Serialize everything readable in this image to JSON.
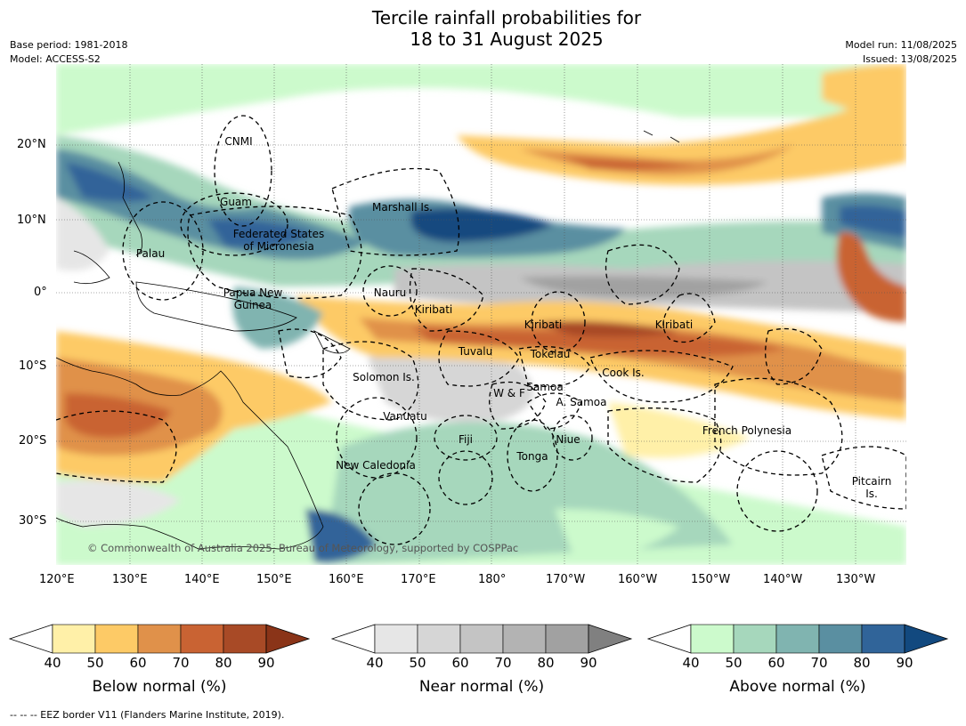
{
  "title_line1": "Tercile rainfall probabilities for",
  "title_line2": "18 to 31 August 2025",
  "base_period": "Base period: 1981-2018",
  "model": "Model: ACCESS-S2",
  "model_run": "Model run: 11/08/2025",
  "issued": "Issued: 13/08/2025",
  "lat_labels": [
    "20°N",
    "10°N",
    "0°",
    "10°S",
    "20°S",
    "30°S"
  ],
  "lon_labels": [
    "120°E",
    "130°E",
    "140°E",
    "150°E",
    "160°E",
    "170°E",
    "180°",
    "170°W",
    "160°W",
    "150°W",
    "140°W",
    "130°W"
  ],
  "regions": [
    "CNMI",
    "Guam",
    "Marshall Is.",
    "Federated States\nof Micronesia",
    "Palau",
    "Nauru",
    "Papua New\nGuinea",
    "Kiribati",
    "Kiribati",
    "Kiribati",
    "Tuvalu",
    "Tokelau",
    "Solomon Is.",
    "Cook Is.",
    "W & F",
    "Samoa",
    "A. Samoa",
    "Vanuatu",
    "Fiji",
    "Niue",
    "French Polynesia",
    "Tonga",
    "New Caledonia",
    "Pitcairn\nIs."
  ],
  "copyright": "© Commonwealth of Australia 2025, Bureau of Meteorology, supported by COSPPac",
  "colorbars": [
    {
      "title": "Below normal (%)",
      "ticks": [
        "40",
        "50",
        "60",
        "70",
        "80",
        "90"
      ],
      "colors": [
        "#fff0a8",
        "#fdca66",
        "#e0914a",
        "#c96333",
        "#a84a26",
        "#8a3418"
      ]
    },
    {
      "title": "Near normal (%)",
      "ticks": [
        "40",
        "50",
        "60",
        "70",
        "80",
        "90"
      ],
      "colors": [
        "#e6e6e6",
        "#d6d6d6",
        "#c4c4c4",
        "#b3b3b3",
        "#a1a1a1",
        "#808080"
      ]
    },
    {
      "title": "Above normal (%)",
      "ticks": [
        "40",
        "50",
        "60",
        "70",
        "80",
        "90"
      ],
      "colors": [
        "#ccfacc",
        "#a6d7bc",
        "#80b4b0",
        "#5a8fa1",
        "#306499",
        "#12497f"
      ]
    }
  ],
  "footnote": "-- -- -- EEZ border V11 (Flanders Marine Institute, 2019)."
}
